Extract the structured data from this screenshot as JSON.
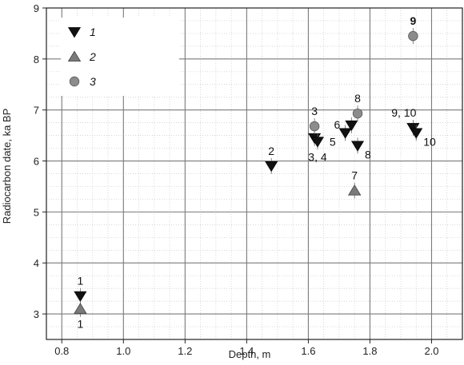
{
  "chart_data": {
    "type": "scatter",
    "xlabel": "Depth, m",
    "ylabel": "Radiocarbon date, ka BP",
    "xlim": [
      0.75,
      2.1
    ],
    "ylim": [
      2.5,
      9
    ],
    "xticks": [
      "0.8",
      "1.0",
      "1.2",
      "1.4",
      "1.6",
      "1.8",
      "2.0"
    ],
    "yticks": [
      "3",
      "4",
      "5",
      "6",
      "7",
      "8",
      "9"
    ],
    "grid": true,
    "legend_position": "top-left",
    "series": [
      {
        "name": "1",
        "marker": "triangle-down",
        "color": "#111111",
        "points": [
          {
            "x": 0.86,
            "y": 3.35
          },
          {
            "x": 1.48,
            "y": 5.9
          },
          {
            "x": 1.62,
            "y": 6.45
          },
          {
            "x": 1.63,
            "y": 6.38
          },
          {
            "x": 1.72,
            "y": 6.55
          },
          {
            "x": 1.74,
            "y": 6.7
          },
          {
            "x": 1.76,
            "y": 6.3
          },
          {
            "x": 1.94,
            "y": 6.65
          },
          {
            "x": 1.95,
            "y": 6.55
          }
        ]
      },
      {
        "name": "2",
        "marker": "triangle-up",
        "color": "#7a7a7a",
        "points": [
          {
            "x": 0.86,
            "y": 3.1
          },
          {
            "x": 1.75,
            "y": 5.42
          }
        ]
      },
      {
        "name": "3",
        "marker": "circle",
        "color": "#8c8c8c",
        "points": [
          {
            "x": 1.62,
            "y": 6.68
          },
          {
            "x": 1.76,
            "y": 6.93
          },
          {
            "x": 1.94,
            "y": 8.45
          }
        ]
      }
    ],
    "annotations": [
      {
        "text": "1",
        "x": 0.86,
        "y": 3.35,
        "pos": "above",
        "bold": false
      },
      {
        "text": "1",
        "x": 0.86,
        "y": 3.1,
        "pos": "below",
        "bold": false
      },
      {
        "text": "2",
        "x": 1.48,
        "y": 5.9,
        "pos": "above",
        "bold": false
      },
      {
        "text": "3",
        "x": 1.62,
        "y": 6.68,
        "pos": "above",
        "bold": false
      },
      {
        "text": "3, 4",
        "x": 1.63,
        "y": 6.38,
        "pos": "below",
        "bold": false
      },
      {
        "text": "6",
        "x": 1.74,
        "y": 6.7,
        "pos": "left",
        "bold": false
      },
      {
        "text": "5",
        "x": 1.72,
        "y": 6.55,
        "pos": "below-left",
        "bold": false
      },
      {
        "text": "8",
        "x": 1.76,
        "y": 6.93,
        "pos": "above",
        "bold": false
      },
      {
        "text": "8",
        "x": 1.76,
        "y": 6.3,
        "pos": "right-below",
        "bold": false
      },
      {
        "text": "7",
        "x": 1.75,
        "y": 5.42,
        "pos": "above",
        "bold": false
      },
      {
        "text": "9, 10",
        "x": 1.94,
        "y": 6.65,
        "pos": "above-left",
        "bold": false
      },
      {
        "text": "10",
        "x": 1.95,
        "y": 6.55,
        "pos": "right-below",
        "bold": false
      },
      {
        "text": "9",
        "x": 1.94,
        "y": 8.45,
        "pos": "above",
        "bold": true
      }
    ]
  }
}
